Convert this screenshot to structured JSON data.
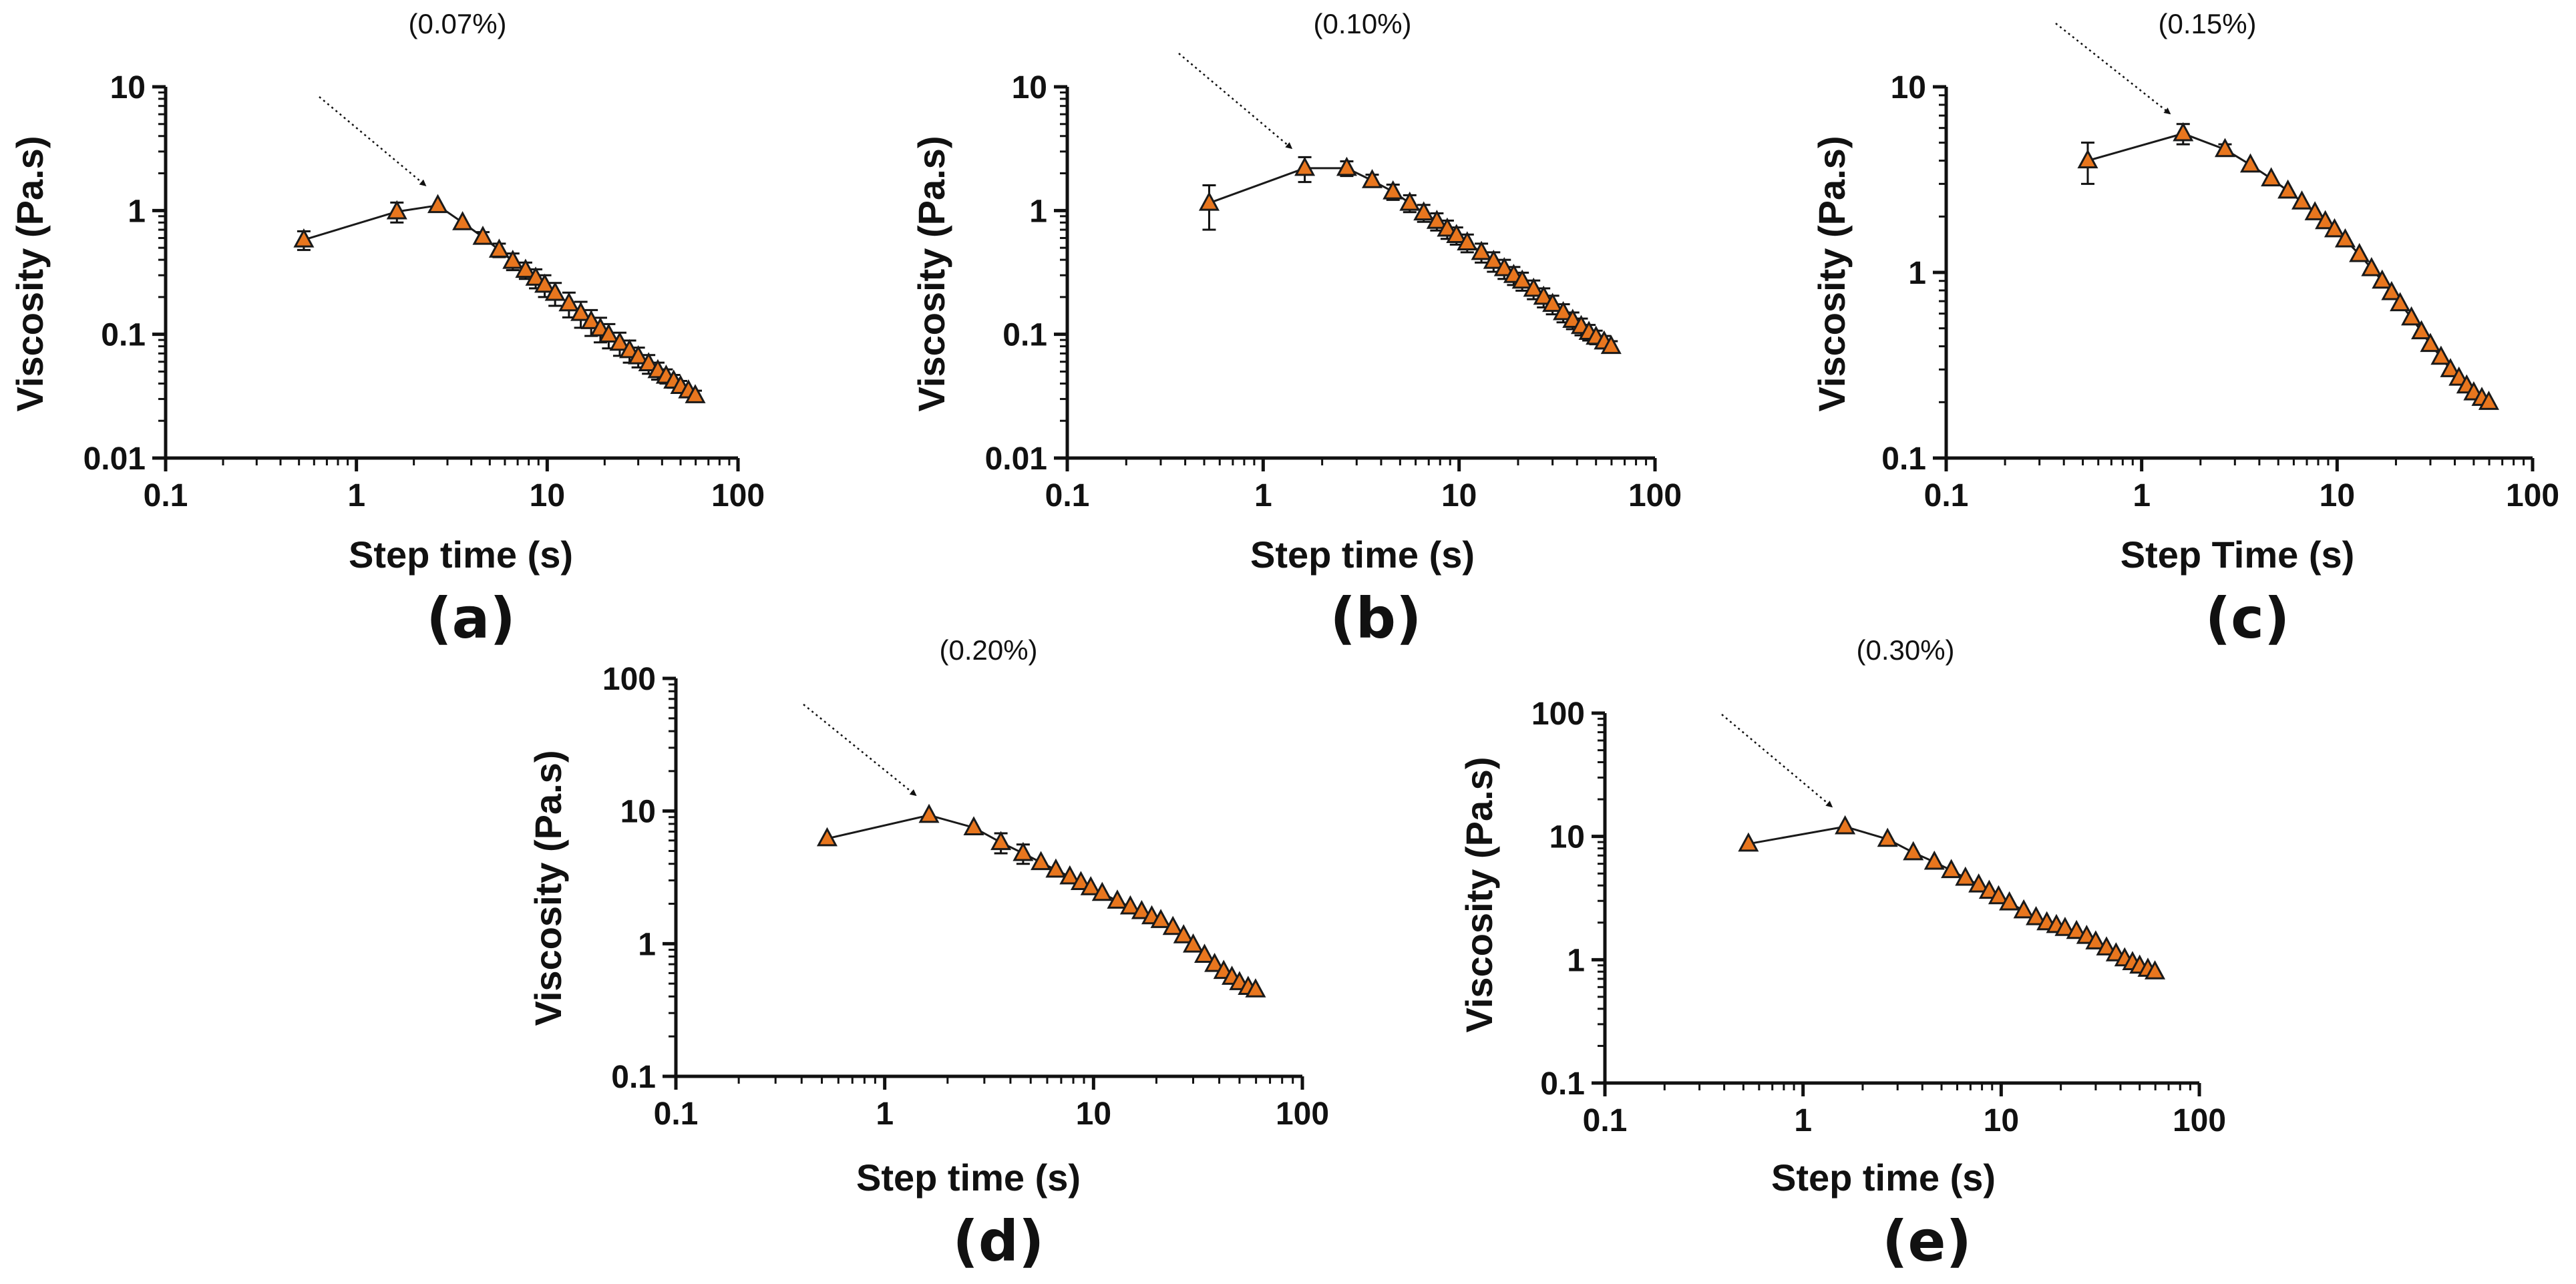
{
  "figure": {
    "marker_color": "#E8761E",
    "marker_edge": "#1a1a1a",
    "line_color": "#1a1a1a",
    "marker_shape": "triangle-up",
    "arrow_note": "dotted arrow marks the viscosity peak"
  },
  "chart_data": [
    {
      "type": "scatter",
      "panel_label": "(a)",
      "title": "(0.07%)",
      "xlabel": "Step time (s)",
      "ylabel": "Viscosity (Pa.s)",
      "xscale": "log",
      "yscale": "log",
      "xlim": [
        0.1,
        100
      ],
      "ylim": [
        0.01,
        10
      ],
      "xticks": [
        "0.1",
        "1",
        "10",
        "100"
      ],
      "yticks": [
        "0.01",
        "0.1",
        "1",
        "10"
      ],
      "peak": {
        "x": 2.7,
        "y": 1.1
      },
      "x": [
        0.53,
        1.63,
        2.67,
        3.6,
        4.6,
        5.6,
        6.6,
        7.7,
        8.7,
        9.7,
        11,
        13,
        15,
        17,
        19,
        21,
        24,
        27,
        30,
        34,
        38,
        42,
        46,
        50,
        55,
        59.7
      ],
      "y": [
        0.58,
        0.98,
        1.1,
        0.8,
        0.61,
        0.48,
        0.39,
        0.33,
        0.285,
        0.25,
        0.215,
        0.177,
        0.148,
        0.127,
        0.111,
        0.099,
        0.085,
        0.074,
        0.066,
        0.058,
        0.051,
        0.046,
        0.042,
        0.038,
        0.035,
        0.032
      ],
      "yerr": [
        0.1,
        0.18,
        0.06,
        0.05,
        0.06,
        0.06,
        0.06,
        0.05,
        0.05,
        0.05,
        0.045,
        0.04,
        0.035,
        0.03,
        0.025,
        0.022,
        0.018,
        0.015,
        0.012,
        0.01,
        0.008,
        0.006,
        0.005,
        0.004,
        0.003,
        0.003
      ]
    },
    {
      "type": "scatter",
      "panel_label": "(b)",
      "title": "(0.10%)",
      "xlabel": "Step time (s)",
      "ylabel": "Viscosity (Pa.s)",
      "xscale": "log",
      "yscale": "log",
      "xlim": [
        0.1,
        100
      ],
      "ylim": [
        0.01,
        10
      ],
      "xticks": [
        "0.1",
        "1",
        "10",
        "100"
      ],
      "yticks": [
        "0.01",
        "0.1",
        "1",
        "10"
      ],
      "peak": {
        "x": 1.63,
        "y": 2.2
      },
      "x": [
        0.53,
        1.63,
        2.67,
        3.6,
        4.6,
        5.6,
        6.6,
        7.7,
        8.7,
        9.7,
        11,
        13,
        15,
        17,
        19,
        21,
        24,
        27,
        30,
        34,
        38,
        42,
        46,
        50,
        55,
        59.7
      ],
      "y": [
        1.15,
        2.2,
        2.2,
        1.75,
        1.42,
        1.15,
        0.96,
        0.82,
        0.71,
        0.63,
        0.55,
        0.46,
        0.39,
        0.34,
        0.3,
        0.27,
        0.232,
        0.2,
        0.175,
        0.15,
        0.13,
        0.116,
        0.104,
        0.095,
        0.087,
        0.08
      ],
      "yerr": [
        0.45,
        0.5,
        0.3,
        0.2,
        0.2,
        0.18,
        0.15,
        0.13,
        0.12,
        0.1,
        0.09,
        0.08,
        0.07,
        0.06,
        0.05,
        0.045,
        0.04,
        0.035,
        0.03,
        0.025,
        0.02,
        0.018,
        0.015,
        0.012,
        0.01,
        0.008
      ]
    },
    {
      "type": "scatter",
      "panel_label": "(c)",
      "title": "(0.15%)",
      "xlabel": "Step Time (s)",
      "ylabel": "Viscosity (Pa.s)",
      "xscale": "log",
      "yscale": "log",
      "xlim": [
        0.1,
        100
      ],
      "ylim": [
        0.1,
        10
      ],
      "xticks": [
        "0.1",
        "1",
        "10",
        "100"
      ],
      "yticks": [
        "0.1",
        "1",
        "10"
      ],
      "peak": {
        "x": 1.63,
        "y": 5.6
      },
      "x": [
        0.53,
        1.63,
        2.67,
        3.6,
        4.6,
        5.6,
        6.6,
        7.7,
        8.7,
        9.7,
        11,
        13,
        15,
        17,
        19,
        21,
        24,
        27,
        30,
        34,
        38,
        42,
        46,
        50,
        55,
        59.7
      ],
      "y": [
        4.0,
        5.6,
        4.6,
        3.8,
        3.2,
        2.75,
        2.4,
        2.1,
        1.88,
        1.7,
        1.5,
        1.25,
        1.05,
        0.9,
        0.78,
        0.68,
        0.57,
        0.48,
        0.41,
        0.35,
        0.3,
        0.27,
        0.245,
        0.225,
        0.21,
        0.2
      ],
      "yerr": [
        1.0,
        0.7,
        0.3,
        0.2,
        0.15,
        0.12,
        0.1,
        0.08,
        0.07,
        0.06,
        0.05,
        0.04,
        0.03,
        0.03,
        0.02,
        0.02,
        0.015,
        0.012,
        0.01,
        0.008,
        0.006,
        0.005,
        0.004,
        0.004,
        0.003,
        0.003
      ]
    },
    {
      "type": "scatter",
      "panel_label": "(d)",
      "title": "(0.20%)",
      "xlabel": "Step time (s)",
      "ylabel": "Viscosity (Pa.s)",
      "xscale": "log",
      "yscale": "log",
      "xlim": [
        0.1,
        100
      ],
      "ylim": [
        0.1,
        100
      ],
      "xticks": [
        "0.1",
        "1",
        "10",
        "100"
      ],
      "yticks": [
        "0.1",
        "1",
        "10",
        "100"
      ],
      "peak": {
        "x": 1.63,
        "y": 9.3
      },
      "x": [
        0.53,
        1.63,
        2.67,
        3.6,
        4.6,
        5.6,
        6.6,
        7.7,
        8.7,
        9.7,
        11,
        13,
        15,
        17,
        19,
        21,
        24,
        27,
        30,
        34,
        38,
        42,
        46,
        50,
        55,
        59.7
      ],
      "y": [
        6.2,
        9.3,
        7.5,
        5.8,
        4.8,
        4.1,
        3.6,
        3.2,
        2.9,
        2.65,
        2.4,
        2.1,
        1.9,
        1.75,
        1.6,
        1.5,
        1.33,
        1.15,
        0.98,
        0.82,
        0.7,
        0.62,
        0.56,
        0.51,
        0.47,
        0.45
      ],
      "yerr": [
        0.3,
        0.5,
        0.6,
        1.0,
        0.8,
        0.3,
        0.2,
        0.15,
        0.1,
        0.08,
        0.07,
        0.06,
        0.05,
        0.05,
        0.04,
        0.04,
        0.03,
        0.03,
        0.02,
        0.02,
        0.015,
        0.012,
        0.01,
        0.01,
        0.008,
        0.008
      ]
    },
    {
      "type": "scatter",
      "panel_label": "(e)",
      "title": "(0.30%)",
      "xlabel": "Step time (s)",
      "ylabel": "Viscosity (Pa.s)",
      "xscale": "log",
      "yscale": "log",
      "xlim": [
        0.1,
        100
      ],
      "ylim": [
        0.1,
        100
      ],
      "xticks": [
        "0.1",
        "1",
        "10",
        "100"
      ],
      "yticks": [
        "0.1",
        "1",
        "10",
        "100"
      ],
      "peak": {
        "x": 1.63,
        "y": 12.0
      },
      "x": [
        0.53,
        1.63,
        2.67,
        3.6,
        4.6,
        5.6,
        6.6,
        7.7,
        8.7,
        9.7,
        11,
        13,
        15,
        17,
        19,
        21,
        24,
        27,
        30,
        34,
        38,
        42,
        46,
        50,
        55,
        59.7
      ],
      "y": [
        8.7,
        12.0,
        9.5,
        7.4,
        6.2,
        5.3,
        4.6,
        4.05,
        3.6,
        3.25,
        2.9,
        2.5,
        2.2,
        2.0,
        1.9,
        1.8,
        1.7,
        1.55,
        1.4,
        1.25,
        1.12,
        1.02,
        0.95,
        0.89,
        0.84,
        0.8
      ],
      "yerr": [
        0.4,
        0.6,
        0.5,
        0.4,
        0.3,
        0.25,
        0.2,
        0.15,
        0.12,
        0.1,
        0.1,
        0.08,
        0.07,
        0.06,
        0.06,
        0.05,
        0.05,
        0.04,
        0.04,
        0.03,
        0.03,
        0.02,
        0.02,
        0.02,
        0.015,
        0.015
      ]
    }
  ]
}
